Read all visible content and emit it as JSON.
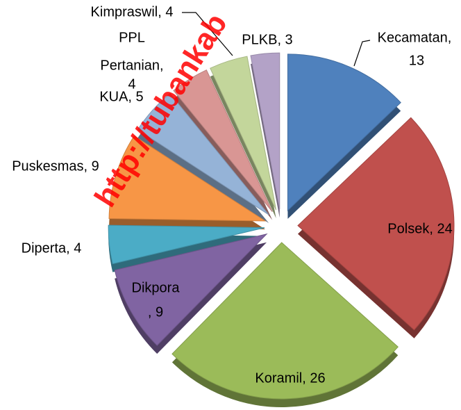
{
  "chart_data": {
    "type": "pie",
    "categories": [
      "Kecamatan",
      "Polsek",
      "Koramil",
      "Dikpora",
      "Diperta",
      "Puskesmas",
      "KUA",
      "PPL Pertanian",
      "Kimpraswil",
      "PLKB"
    ],
    "values": [
      13,
      24,
      26,
      9,
      4,
      9,
      5,
      4,
      4,
      3
    ],
    "value_labels": [
      [
        "Kecamatan,",
        "13"
      ],
      [
        "Polsek, 24"
      ],
      [
        "Koramil, 26"
      ],
      [
        "Dikpora",
        ", 9"
      ],
      [
        "Diperta, 4"
      ],
      [
        "Puskesmas, 9"
      ],
      [
        "KUA, 5"
      ],
      [
        "PPL",
        "Pertanian,",
        "4"
      ],
      [
        "Kimpraswil, 4"
      ],
      [
        "PLKB, 3"
      ]
    ],
    "colors": [
      "#4f81bd",
      "#c0504d",
      "#9bbb59",
      "#8064a2",
      "#4bacc6",
      "#f79646",
      "#95b3d7",
      "#d99694",
      "#c3d69b",
      "#b3a2c7"
    ],
    "watermark": "http://tubankab"
  }
}
